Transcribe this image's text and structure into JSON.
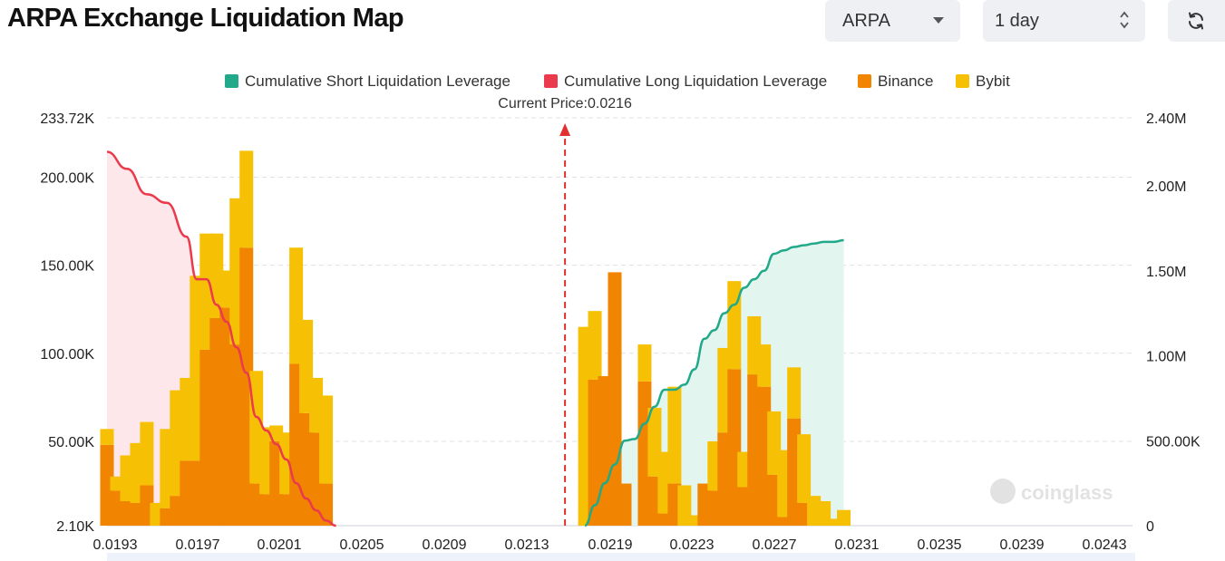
{
  "header": {
    "title": "ARPA Exchange Liquidation Map",
    "symbol_select": "ARPA",
    "range_select": "1 day",
    "refresh_icon": "refresh-icon"
  },
  "colors": {
    "short": "#21a98a",
    "long": "#ea3a4c",
    "binance": "#f18400",
    "bybit": "#f6c104",
    "arrow": "#e03030"
  },
  "chart_data": {
    "type": "bar",
    "title": "ARPA Exchange Liquidation Map",
    "current_price_label": "Current Price:0.0216",
    "current_price": 0.0216,
    "legend": [
      "Cumulative Short Liquidation Leverage",
      "Cumulative Long Liquidation Leverage",
      "Binance",
      "Bybit"
    ],
    "legend_position": "top-center",
    "x_ticks": [
      "0.0193",
      "0.0197",
      "0.0201",
      "0.0205",
      "0.0209",
      "0.0213",
      "0.0219",
      "0.0223",
      "0.0227",
      "0.0231",
      "0.0235",
      "0.0239",
      "0.0243"
    ],
    "y_left_ticks": [
      "2.10K",
      "50.00K",
      "100.00K",
      "150.00K",
      "200.00K",
      "233.72K"
    ],
    "y_left_range": [
      2100,
      233720
    ],
    "y_left_tick_values": [
      2100,
      50000,
      100000,
      150000,
      200000,
      233720
    ],
    "y_right_ticks": [
      "0",
      "500.00K",
      "1.00M",
      "1.50M",
      "2.00M",
      "2.40M"
    ],
    "y_right_range": [
      0,
      2400000
    ],
    "y_right_tick_values": [
      0,
      500000,
      1000000,
      1500000,
      2000000,
      2400000
    ],
    "grid": true,
    "watermark": "coinglass",
    "categories": [
      "0.0193",
      "0.01935",
      "0.0194",
      "0.01945",
      "0.0195",
      "0.01955",
      "0.0196",
      "0.01965",
      "0.0197",
      "0.01975",
      "0.0198",
      "0.01985",
      "0.0199",
      "0.01995",
      "0.0200",
      "0.02005",
      "0.0201",
      "0.02015",
      "0.0202",
      "0.02025",
      "0.0203",
      "0.02035",
      "0.0204",
      "0.02045",
      "0.0205",
      "0.02055",
      "0.0206",
      "0.02065",
      "0.0207",
      "0.02075",
      "0.0208",
      "0.02085",
      "0.0209",
      "0.02095",
      "0.0210",
      "0.02105",
      "0.0211",
      "0.02115",
      "0.0212",
      "0.02125",
      "0.0213",
      "0.02135",
      "0.0214",
      "0.02145",
      "0.0215",
      "0.02155",
      "0.0216",
      "0.02165",
      "0.0217",
      "0.02175",
      "0.0218",
      "0.02185",
      "0.0219",
      "0.02195",
      "0.0220",
      "0.02205",
      "0.0221",
      "0.02215",
      "0.0222",
      "0.02225",
      "0.0223",
      "0.02235",
      "0.0224",
      "0.02245",
      "0.0225",
      "0.02255",
      "0.0226",
      "0.02265",
      "0.0227",
      "0.02275",
      "0.0228",
      "0.02285",
      "0.0229",
      "0.02295",
      "0.0230",
      "0.02305",
      "0.0231",
      "0.02315",
      "0.0232",
      "0.02325",
      "0.0233",
      "0.02335",
      "0.0234",
      "0.02345",
      "0.0235",
      "0.02355",
      "0.0236",
      "0.02365",
      "0.0237",
      "0.02375",
      "0.0238",
      "0.02385",
      "0.0239",
      "0.02395",
      "0.0240",
      "0.02405",
      "0.0241",
      "0.02415",
      "0.0242",
      "0.02425",
      "0.0243",
      "0.02435",
      "0.0244",
      "0.02445"
    ],
    "bars": [
      {
        "x": 0.0193,
        "binance": 48000,
        "bybit": 9000
      },
      {
        "x": 0.01935,
        "binance": 22000,
        "bybit": 8000
      },
      {
        "x": 0.0194,
        "binance": 16000,
        "bybit": 26000
      },
      {
        "x": 0.01945,
        "binance": 15000,
        "bybit": 34000
      },
      {
        "x": 0.0195,
        "binance": 25000,
        "bybit": 36000
      },
      {
        "x": 0.01955,
        "binance": 0,
        "bybit": 15000
      },
      {
        "x": 0.0196,
        "binance": 12000,
        "bybit": 45000
      },
      {
        "x": 0.01965,
        "binance": 19000,
        "bybit": 60000
      },
      {
        "x": 0.0197,
        "binance": 39000,
        "bybit": 47000
      },
      {
        "x": 0.01975,
        "binance": 39000,
        "bybit": 105000
      },
      {
        "x": 0.0198,
        "binance": 102000,
        "bybit": 66000
      },
      {
        "x": 0.01985,
        "binance": 120000,
        "bybit": 48000
      },
      {
        "x": 0.0199,
        "binance": 126000,
        "bybit": 21000
      },
      {
        "x": 0.01995,
        "binance": 105000,
        "bybit": 83000
      },
      {
        "x": 0.02,
        "binance": 160000,
        "bybit": 55000
      },
      {
        "x": 0.02005,
        "binance": 26000,
        "bybit": 64000
      },
      {
        "x": 0.0201,
        "binance": 20000,
        "bybit": 38000
      },
      {
        "x": 0.02015,
        "binance": 50000,
        "bybit": 9000
      },
      {
        "x": 0.0202,
        "binance": 20000,
        "bybit": 35000
      },
      {
        "x": 0.02025,
        "binance": 94000,
        "bybit": 66000
      },
      {
        "x": 0.0203,
        "binance": 66000,
        "bybit": 53000
      },
      {
        "x": 0.02035,
        "binance": 55000,
        "bybit": 31000
      },
      {
        "x": 0.0204,
        "binance": 26000,
        "bybit": 50000
      },
      {
        "x": 0.02045,
        "binance": 0,
        "bybit": 0
      },
      {
        "x": 0.0205,
        "binance": 0,
        "bybit": 0
      },
      {
        "x": 0.02055,
        "binance": 0,
        "bybit": 0
      },
      {
        "x": 0.0206,
        "binance": 0,
        "bybit": 0
      },
      {
        "x": 0.02065,
        "binance": 0,
        "bybit": 0
      },
      {
        "x": 0.0207,
        "binance": 0,
        "bybit": 0
      },
      {
        "x": 0.02075,
        "binance": 0,
        "bybit": 0
      },
      {
        "x": 0.0208,
        "binance": 0,
        "bybit": 0
      },
      {
        "x": 0.02085,
        "binance": 0,
        "bybit": 0
      },
      {
        "x": 0.0209,
        "binance": 0,
        "bybit": 0
      },
      {
        "x": 0.02095,
        "binance": 0,
        "bybit": 0
      }
    ],
    "bars_right": [
      {
        "x": 0.0217,
        "binance": 0,
        "bybit": 115000
      },
      {
        "x": 0.02175,
        "binance": 85000,
        "bybit": 39000
      },
      {
        "x": 0.0218,
        "binance": 87000,
        "bybit": 0
      },
      {
        "x": 0.02185,
        "binance": 146000,
        "bybit": 0
      },
      {
        "x": 0.0219,
        "binance": 26000,
        "bybit": 0
      },
      {
        "x": 0.02195,
        "binance": 0,
        "bybit": 0
      },
      {
        "x": 0.022,
        "binance": 84000,
        "bybit": 21000
      },
      {
        "x": 0.02205,
        "binance": 30000,
        "bybit": 39000
      },
      {
        "x": 0.0221,
        "binance": 9000,
        "bybit": 35000
      },
      {
        "x": 0.02215,
        "binance": 26000,
        "bybit": 55000
      },
      {
        "x": 0.0222,
        "binance": 0,
        "bybit": 25000
      },
      {
        "x": 0.02225,
        "binance": 0,
        "bybit": 8000
      },
      {
        "x": 0.0223,
        "binance": 26000,
        "bybit": 0
      },
      {
        "x": 0.02235,
        "binance": 22000,
        "bybit": 28000
      },
      {
        "x": 0.0224,
        "binance": 55000,
        "bybit": 48000
      },
      {
        "x": 0.02245,
        "binance": 91000,
        "bybit": 50000
      },
      {
        "x": 0.0225,
        "binance": 24000,
        "bybit": 20000
      },
      {
        "x": 0.02255,
        "binance": 88000,
        "bybit": 33000
      },
      {
        "x": 0.0226,
        "binance": 81000,
        "bybit": 24000
      },
      {
        "x": 0.02265,
        "binance": 31000,
        "bybit": 36000
      },
      {
        "x": 0.0227,
        "binance": 7000,
        "bybit": 38000
      },
      {
        "x": 0.02275,
        "binance": 63000,
        "bybit": 29000
      },
      {
        "x": 0.0228,
        "binance": 15000,
        "bybit": 39000
      },
      {
        "x": 0.02285,
        "binance": 0,
        "bybit": 19000
      },
      {
        "x": 0.0229,
        "binance": 0,
        "bybit": 16000
      },
      {
        "x": 0.02295,
        "binance": 0,
        "bybit": 6000
      },
      {
        "x": 0.023,
        "binance": 0,
        "bybit": 11000
      }
    ],
    "series": [
      {
        "name": "Cumulative Long Liquidation Leverage",
        "x": [
          0.0193,
          0.0194,
          0.0195,
          0.0196,
          0.0197,
          0.01975,
          0.0198,
          0.01985,
          0.0199,
          0.01995,
          0.02,
          0.02005,
          0.0201,
          0.02015,
          0.0202,
          0.02025,
          0.0203,
          0.02035,
          0.0204,
          0.02045
        ],
        "values": [
          2200000,
          2100000,
          1950000,
          1900000,
          1700000,
          1450000,
          1450000,
          1300000,
          1200000,
          1050000,
          900000,
          640000,
          560000,
          480000,
          390000,
          250000,
          160000,
          90000,
          30000,
          0
        ]
      },
      {
        "name": "Cumulative Short Liquidation Leverage",
        "x": [
          0.0217,
          0.02175,
          0.0218,
          0.02185,
          0.0219,
          0.02195,
          0.022,
          0.02205,
          0.0221,
          0.02215,
          0.0222,
          0.02225,
          0.0223,
          0.02235,
          0.0224,
          0.02245,
          0.0225,
          0.02255,
          0.0226,
          0.02265,
          0.0227,
          0.02275,
          0.0228,
          0.02285,
          0.0229,
          0.02295,
          0.023
        ],
        "values": [
          0,
          120000,
          250000,
          360000,
          500000,
          510000,
          600000,
          700000,
          800000,
          800000,
          830000,
          920000,
          1100000,
          1150000,
          1250000,
          1300000,
          1400000,
          1450000,
          1500000,
          1600000,
          1620000,
          1640000,
          1650000,
          1660000,
          1670000,
          1670000,
          1680000
        ]
      }
    ]
  }
}
